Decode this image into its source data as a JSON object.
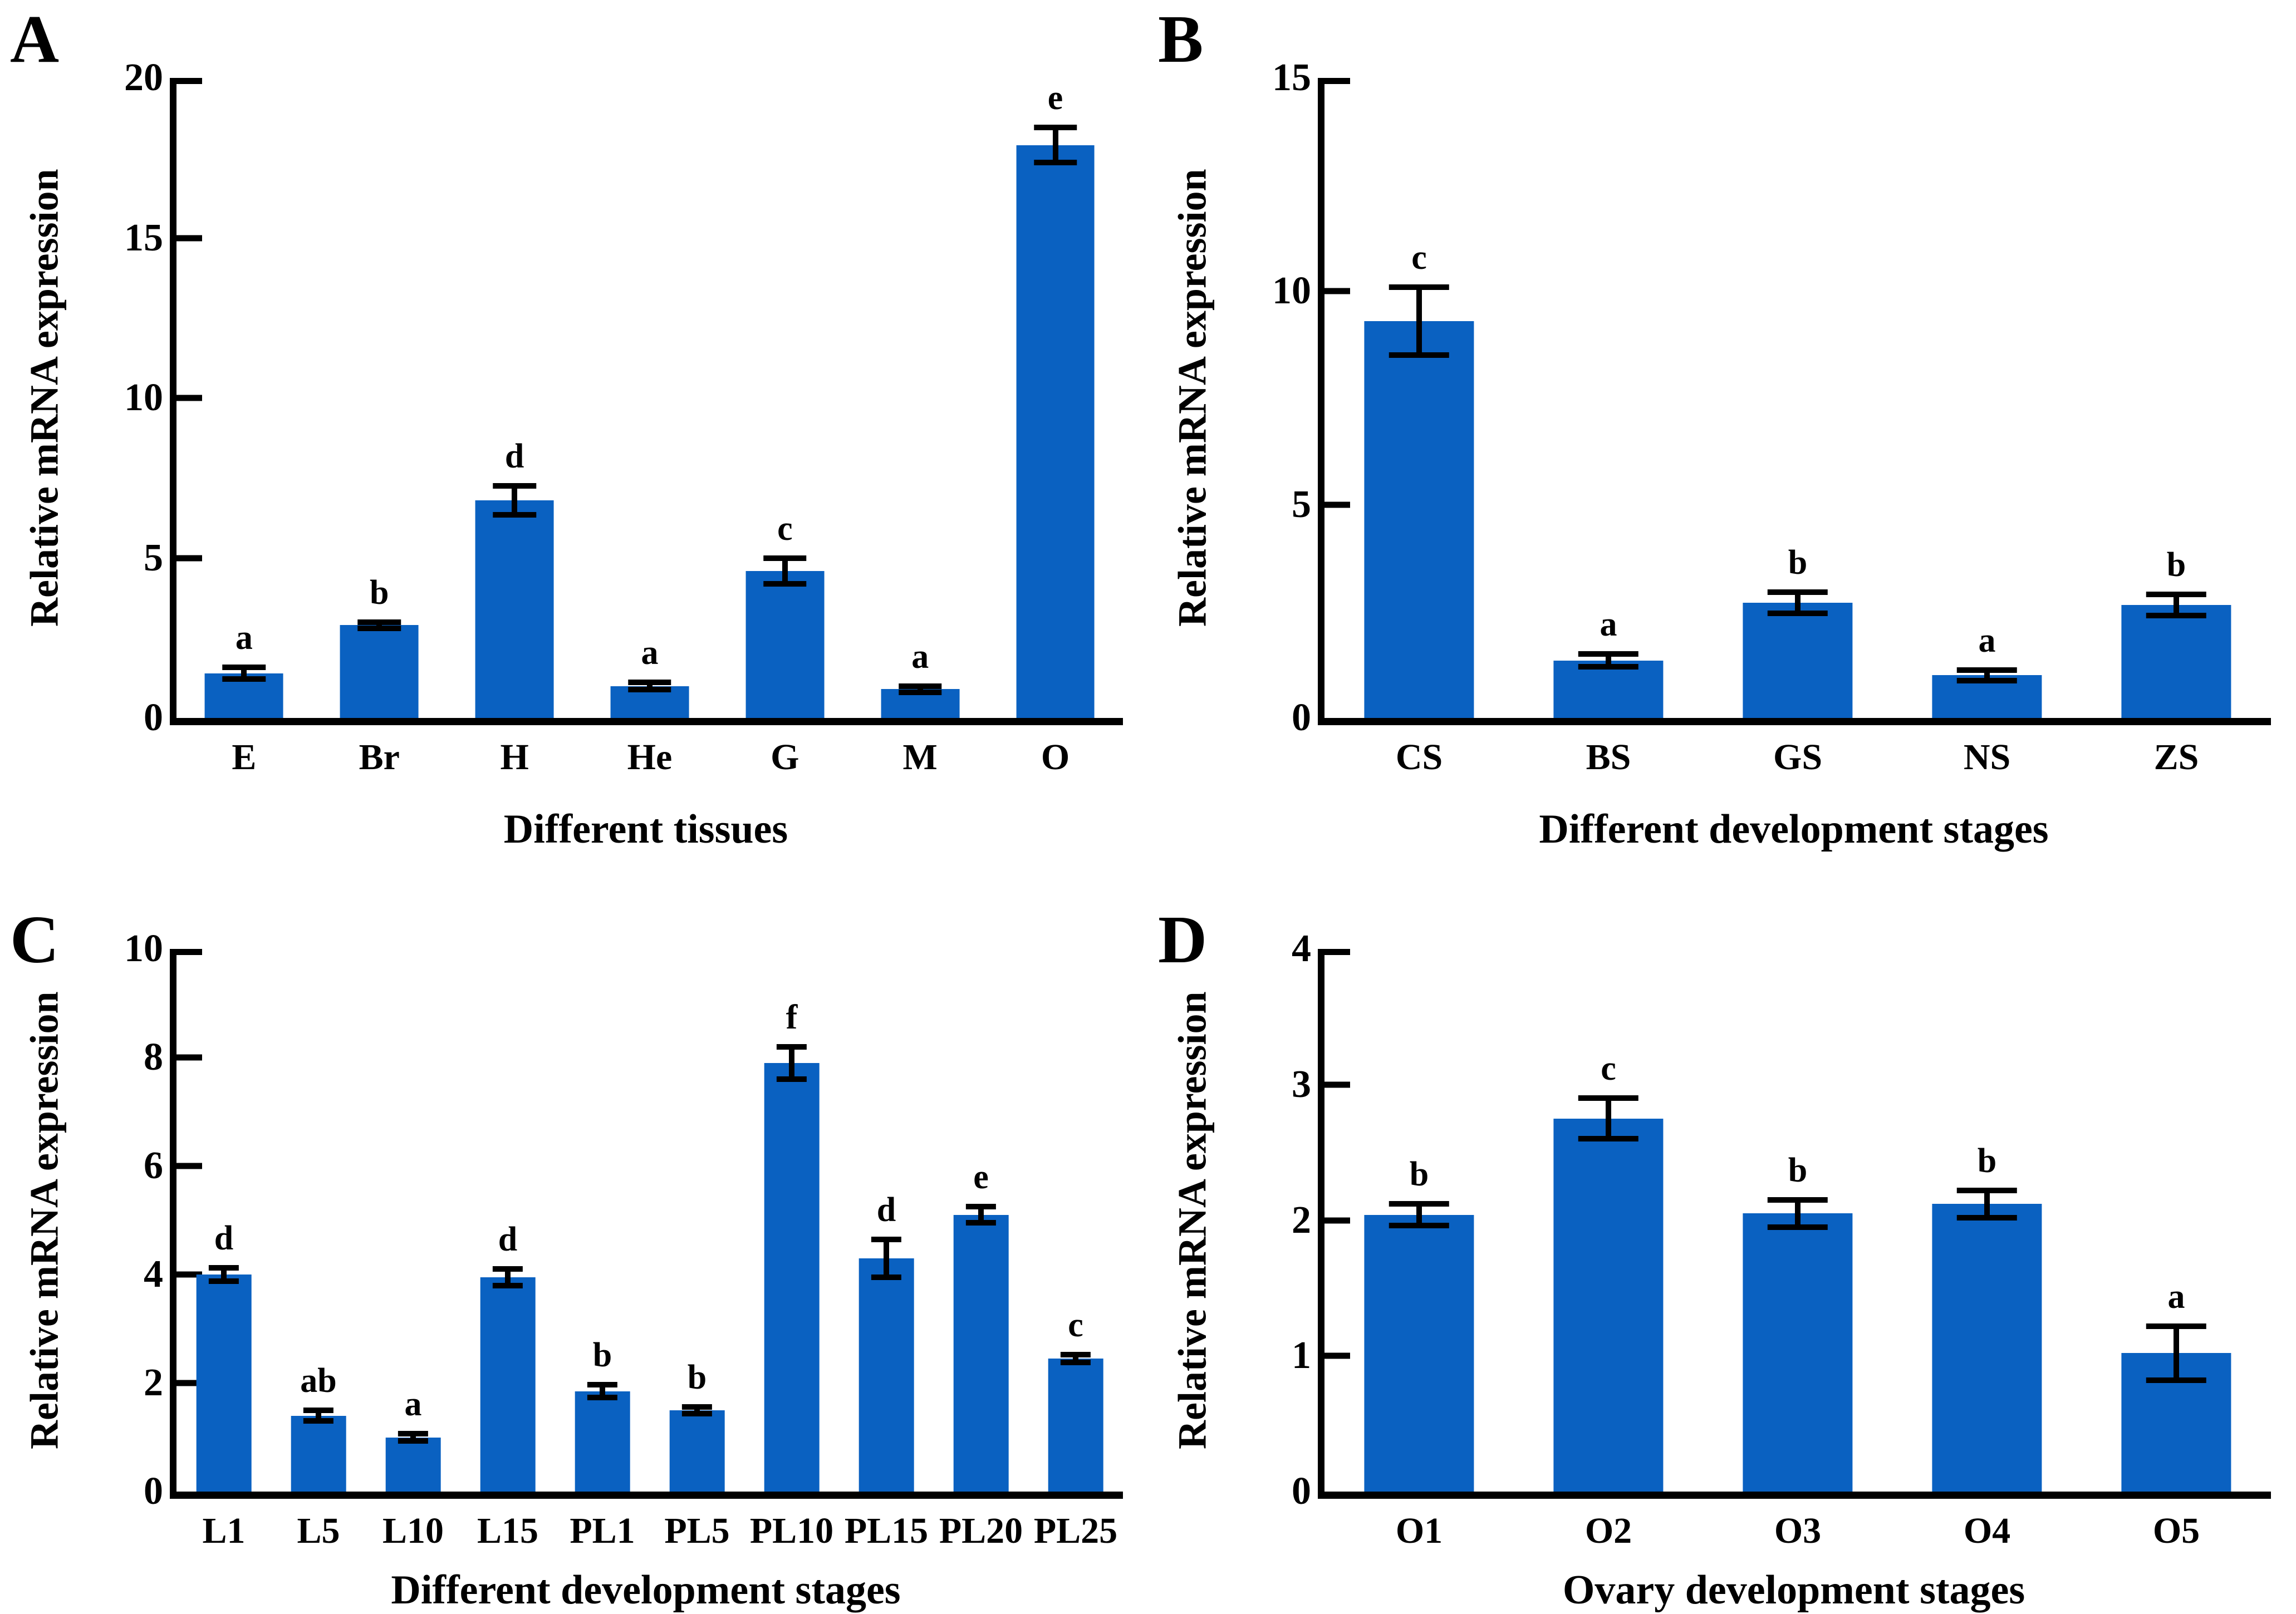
{
  "figure": {
    "background": "#ffffff",
    "bar_color": "#0a61c1",
    "axis_color": "#000000",
    "error_bar_color": "#000000"
  },
  "chart_data": [
    {
      "type": "bar",
      "panel_label": "A",
      "xlabel": "Different tissues",
      "ylabel": "Relative mRNA expression",
      "ylim": [
        0,
        20
      ],
      "yticks": [
        0,
        5,
        10,
        15,
        20
      ],
      "grid": false,
      "legend": null,
      "categories": [
        "E",
        "Br",
        "H",
        "He",
        "G",
        "M",
        "O"
      ],
      "values": [
        1.4,
        2.9,
        6.8,
        1.0,
        4.6,
        0.9,
        17.9
      ],
      "errors": [
        0.18,
        0.1,
        0.45,
        0.12,
        0.4,
        0.1,
        0.55
      ],
      "sig_letters": [
        "a",
        "b",
        "d",
        "a",
        "c",
        "a",
        "e"
      ]
    },
    {
      "type": "bar",
      "panel_label": "B",
      "xlabel": "Different development stages",
      "ylabel": "Relative mRNA expression",
      "ylim": [
        0,
        15
      ],
      "yticks": [
        0,
        5,
        10,
        15
      ],
      "grid": false,
      "legend": null,
      "categories": [
        "CS",
        "BS",
        "GS",
        "NS",
        "ZS"
      ],
      "values": [
        9.3,
        1.35,
        2.7,
        1.0,
        2.65
      ],
      "errors": [
        0.8,
        0.15,
        0.25,
        0.12,
        0.25
      ],
      "sig_letters": [
        "c",
        "a",
        "b",
        "a",
        "b"
      ]
    },
    {
      "type": "bar",
      "panel_label": "C",
      "xlabel": "Different development stages",
      "ylabel": "Relative mRNA expression",
      "ylim": [
        0,
        10
      ],
      "yticks": [
        0,
        2,
        4,
        6,
        8,
        10
      ],
      "grid": false,
      "legend": null,
      "categories": [
        "L1",
        "L5",
        "L10",
        "L15",
        "PL1",
        "PL5",
        "PL10",
        "PL15",
        "PL20",
        "PL25"
      ],
      "values": [
        4.0,
        1.4,
        1.0,
        3.95,
        1.85,
        1.5,
        7.9,
        4.3,
        5.1,
        2.45
      ],
      "errors": [
        0.12,
        0.1,
        0.07,
        0.15,
        0.12,
        0.06,
        0.3,
        0.35,
        0.15,
        0.07
      ],
      "sig_letters": [
        "d",
        "ab",
        "a",
        "d",
        "b",
        "b",
        "f",
        "d",
        "e",
        "c"
      ]
    },
    {
      "type": "bar",
      "panel_label": "D",
      "xlabel": "Ovary development stages",
      "ylabel": "Relative mRNA expression",
      "ylim": [
        0,
        4
      ],
      "yticks": [
        0,
        1,
        2,
        3,
        4
      ],
      "grid": false,
      "legend": null,
      "categories": [
        "O1",
        "O2",
        "O3",
        "O4",
        "O5"
      ],
      "values": [
        2.04,
        2.75,
        2.05,
        2.12,
        1.02
      ],
      "errors": [
        0.08,
        0.15,
        0.1,
        0.1,
        0.2
      ],
      "sig_letters": [
        "b",
        "c",
        "b",
        "b",
        "a"
      ]
    }
  ]
}
